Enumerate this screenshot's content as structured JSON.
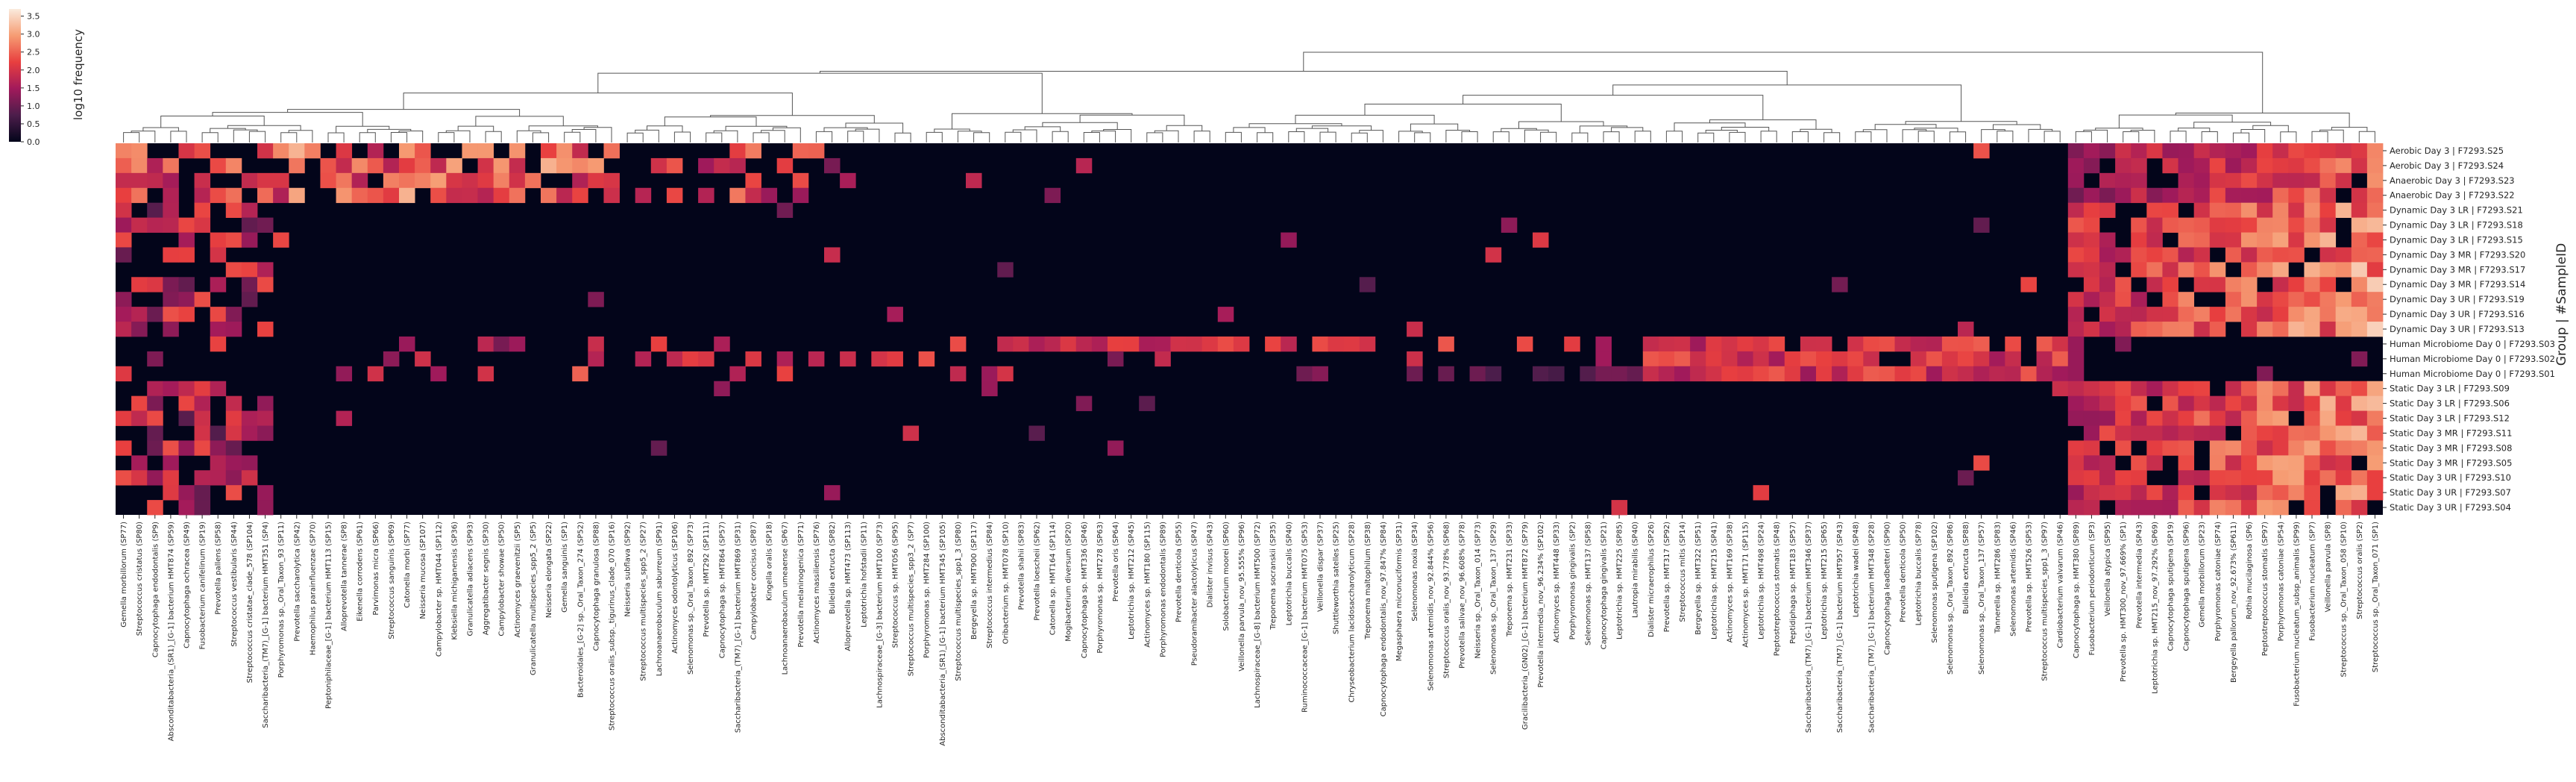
{
  "chart_data": {
    "type": "heatmap",
    "title": "",
    "ylabel": "Group | #SampleID",
    "xlabel": "",
    "colorbar": {
      "label": "log10 frequency",
      "ticks": [
        "0.0",
        "0.5",
        "1.0",
        "1.5",
        "2.0",
        "2.5",
        "3.0",
        "3.5"
      ],
      "range": [
        0,
        3.7
      ],
      "colors": [
        "#03051a",
        "#4c1d4b",
        "#a11a5b",
        "#e83f3f",
        "#f69c73",
        "#faebdd"
      ]
    },
    "dendrogram": "top",
    "rows": [
      "Aerobic Day 3 | F7293.S25",
      "Aerobic Day 3 | F7293.S24",
      "Anaerobic Day 3 | F7293.S23",
      "Anaerobic Day 3 | F7293.S22",
      "Dynamic Day 3 LR | F7293.S21",
      "Dynamic Day 3 LR | F7293.S18",
      "Dynamic Day 3 LR | F7293.S15",
      "Dynamic Day 3 MR | F7293.S20",
      "Dynamic Day 3 MR | F7293.S17",
      "Dynamic Day 3 MR | F7293.S14",
      "Dynamic Day 3 UR | F7293.S19",
      "Dynamic Day 3 UR | F7293.S16",
      "Dynamic Day 3 UR | F7293.S13",
      "Human Microbiome Day 0 | F7293.S03",
      "Human Microbiome Day 0 | F7293.S02",
      "Human Microbiome Day 0 | F7293.S01",
      "Static Day 3 LR | F7293.S09",
      "Static Day 3 LR | F7293.S06",
      "Static Day 3 LR | F7293.S12",
      "Static Day 3 MR | F7293.S11",
      "Static Day 3 MR | F7293.S08",
      "Static Day 3 MR | F7293.S05",
      "Static Day 3 UR | F7293.S10",
      "Static Day 3 UR | F7293.S07",
      "Static Day 3 UR | F7293.S04"
    ],
    "columns": [
      "Gemella morbillorum (SP77)",
      "Streptococcus cristatus (SP80)",
      "Capnocytophaga endodontalis (SP9)",
      "Absconditabacteria_(SR1)_[G-1] bacterium HMT874 (SP59)",
      "Capnocytophaga ochracea (SP49)",
      "Fusobacterium canifelinum (SP19)",
      "Prevotella pallens (SP58)",
      "Streptococcus vestibularis (SP44)",
      "Streptococcus cristatae_clade_578 (SP104)",
      "Saccharibacteria_(TM7)_[G-1] bacterium HMT351 (SP4)",
      "Porphyromonas sp._Oral_Taxon_93 (SP11)",
      "Prevotella saccharolytica (SP42)",
      "Haemophilus parainfluenzae (SP70)",
      "Peptoniphilaceae_[G-1] bacterium HMT113 (SP15)",
      "Alloprevotella tannerae (SP8)",
      "Eikenella corrodens (SP61)",
      "Parvimonas micra (SP66)",
      "Streptococcus sanguinis (SP69)",
      "Catonella morbi (SP77)",
      "Neisseria mucosa (SP107)",
      "Campylobacter sp. HMT044 (SP112)",
      "Klebsiella michiganensis (SP36)",
      "Granulicatella adiacens (SP93)",
      "Aggregatibacter segnis (SP30)",
      "Campylobacter showae (SP50)",
      "Actinomyces graevenitzii (SP5)",
      "Granulicatella multispecies_spp5_2 (SP5)",
      "Neisseria elongata (SP22)",
      "Gemella sanguinis (SP1)",
      "Bacteroidales_[G-2] sp._Oral_Taxon_274 (SP52)",
      "Capnocytophaga granulosa (SP88)",
      "Streptococcus oralis_subsp._tigurinus_clade_070 (SP16)",
      "Neisseria subflava (SP92)",
      "Streptococcus multispecies_spp5_2 (SP27)",
      "Lachnoanaerobaculum saburreum (SP91)",
      "Actinomyces odontolyticus (SP106)",
      "Selenomonas sp._Oral_Taxon_892 (SP73)",
      "Prevotella sp. HMT292 (SP111)",
      "Capnocytophaga sp. HMT864 (SP57)",
      "Saccharibacteria_(TM7)_[G-1] bacterium HMT869 (SP31)",
      "Campylobacter concisus (SP87)",
      "Kingella oralis (SP18)",
      "Lachnoanaerobaculum umeaense (SP67)",
      "Prevotella melaninogenica (SP71)",
      "Actinomyces massiliensis (SP76)",
      "Bulleidia extructa (SP82)",
      "Alloprevotella sp. HMT473 (SP113)",
      "Leptotrichia hofstadii (SP11)",
      "Lachnospiraceae_[G-3] bacterium HMT100 (SP73)",
      "Streptococcus sp. HMT056 (SP95)",
      "Streptococcus multispecies_spp3_2 (SP7)",
      "Porphyromonas sp. HMT284 (SP100)",
      "Absconditabacteria_(SR1)_[G-1] bacterium HMT345 (SP105)",
      "Streptococcus multispecies_spp1_3 (SP80)",
      "Bergeyella sp. HMT900 (SP117)",
      "Streptococcus intermedius (SP84)",
      "Oribacterium sp. HMT078 (SP10)",
      "Prevotella shahii (SP83)",
      "Prevotella loescheii (SP62)",
      "Catonella sp. HMT164 (SP114)",
      "Mogibacterium diversum (SP20)",
      "Capnocytophaga sp. HMT336 (SP46)",
      "Porphyromonas sp. HMT278 (SP63)",
      "Prevotella oris (SP64)",
      "Leptotrichia sp. HMT212 (SP45)",
      "Actinomyces sp. HMT180 (SP115)",
      "Porphyromonas endodontalis (SP89)",
      "Prevotella denticola (SP55)",
      "Pseudoramibacter alactolyticus (SP47)",
      "Dialister invisus (SP43)",
      "Solobacterium moorei (SP60)",
      "Veillonella parvula_nov_95.555% (SP96)",
      "Lachnospiraceae_[G-8] bacterium HMT500 (SP72)",
      "Treponema socranskii (SP35)",
      "Leptotrichia buccalis (SP40)",
      "Ruminococcaceae_[G-1] bacterium HMT075 (SP53)",
      "Veillonella dispar (SP37)",
      "Shuttleworthia satelles (SP25)",
      "Chryseobacterium lacidosaccharolyticum (SP28)",
      "Treponema maltophilum (SP38)",
      "Capnocytophaga endodontalis_nov_97.847% (SP84)",
      "Megasphaera micronuciformis (SP31)",
      "Selenomonas noxia (SP34)",
      "Selenomonas artemidis_nov_92.844% (SP56)",
      "Streptococcus oralis_nov_93.778% (SP68)",
      "Prevotella salivae_nov_96.608% (SP78)",
      "Neisseria sp._Oral_Taxon_014 (SP73)",
      "Selenomonas sp._Oral_Taxon_137 (SP29)",
      "Treponema sp. HMT231 (SP33)",
      "Gracilibacteria_(GN02)_[G-1] bacterium HMT872 (SP79)",
      "Prevotella intermedia_nov_96.234% (SP102)",
      "Actinomyces sp. HMT448 (SP33)",
      "Porphyromonas gingivalis (SP2)",
      "Selenomonas sp. HMT137 (SP58)",
      "Capnocytophaga gingivalis (SP21)",
      "Leptotrichia sp. HMT225 (SP85)",
      "Lautropia mirabilis (SP40)",
      "Dialister micraerophilus (SP26)",
      "Prevotella sp. HMT317 (SP92)",
      "Streptococcus mitis (SP14)",
      "Bergeyella sp. HMT322 (SP51)",
      "Leptotrichia sp. HMT215 (SP41)",
      "Actinomyces sp. HMT169 (SP38)",
      "Actinomyces sp. HMT171 (SP115)",
      "Leptotrichia sp. HMT498 (SP24)",
      "Peptostreptococcus stomatis (SP48)",
      "Peptidiphaga sp. HMT183 (SP57)",
      "Saccharibacteria_(TM7)_[G-1] bacterium HMT346 (SP37)",
      "Leptotrichia sp. HMT215 (SP65)",
      "Saccharibacteria_(TM7)_[G-1] bacterium HMT957 (SP43)",
      "Leptotrichia wadei (SP48)",
      "Saccharibacteria_(TM7)_[G-1] bacterium HMT348 (SP28)",
      "Capnocytophaga leadbetteri (SP90)",
      "Prevotella denticola (SP50)",
      "Leptotrichia buccalis (SP78)",
      "Selenomonas sputigena (SP102)",
      "Selenomonas sp._Oral_Taxon_892 (SP86)",
      "Bulleidia extructa (SP88)",
      "Selenomonas sp._Oral_Taxon_137 (SP57)",
      "Tannerella sp. HMT286 (SP83)",
      "Selenomonas artemidis (SP46)",
      "Prevotella sp. HMT526 (SP53)",
      "Streptococcus multispecies_spp1_3 (SP97)",
      "Cardiobacterium valvarum (SP46)",
      "Capnocytophaga sp. HMT380 (SP89)",
      "Fusobacterium periodonticum (SP3)",
      "Veillonella atypica (SP95)",
      "Prevotella sp. HMT300_nov_97.669% (SP1)",
      "Prevotella intermedia (SP43)",
      "Leptotrichia sp. HMT215_nov_97.292% (SP69)",
      "Capnocytophaga sputigena (SP19)",
      "Capnocytophaga sputigena (SP96)",
      "Gemella morbillorum (SP23)",
      "Porphyromonas catoniae (SP74)",
      "Bergeyella pallorum_nov_92.673% (SP611)",
      "Rothia mucilaginosa (SP6)",
      "Peptostreptococcus stomatis (SP97)",
      "Porphyromonas catoniae (SP54)",
      "Fusobacterium nucleatum_subsp_animalis (SP99)",
      "Fusobacterium nucleatum (SP7)",
      "Veillonella parvula (SP8)",
      "Streptococcus sp._Oral_Taxon_058 (SP10)",
      "Streptococcus oralis (SP2)",
      "Streptococcus sp._Oral_Taxon_071 (SP1)"
    ]
  }
}
